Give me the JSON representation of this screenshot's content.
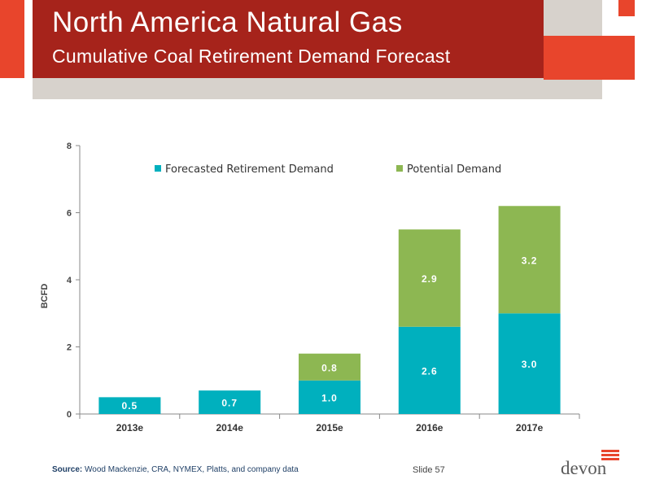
{
  "header": {
    "title": "North America Natural Gas",
    "subtitle": "Cumulative Coal Retirement Demand Forecast"
  },
  "chart_data": {
    "type": "bar",
    "stacked": true,
    "categories": [
      "2013e",
      "2014e",
      "2015e",
      "2016e",
      "2017e"
    ],
    "series": [
      {
        "name": "Forecasted Retirement Demand",
        "color": "#00b0be",
        "values": [
          0.5,
          0.7,
          1.0,
          2.6,
          3.0
        ],
        "labels": [
          "0.5",
          "0.7",
          "1.0",
          "2.6",
          "3.0"
        ]
      },
      {
        "name": "Potential Demand",
        "color": "#8db752",
        "values": [
          null,
          null,
          0.8,
          2.9,
          3.2
        ],
        "labels": [
          "",
          "",
          "0.8",
          "2.9",
          "3.2"
        ]
      }
    ],
    "ylabel": "BCFD",
    "ylim": [
      0,
      8
    ],
    "yticks": [
      0,
      2,
      4,
      6,
      8
    ],
    "legend_position": "top",
    "grid": false
  },
  "footer": {
    "source_label": "Source:",
    "source_text": "Wood Mackenzie, CRA, NYMEX, Platts, and company data",
    "slide": "Slide 57",
    "logo": "devon"
  }
}
